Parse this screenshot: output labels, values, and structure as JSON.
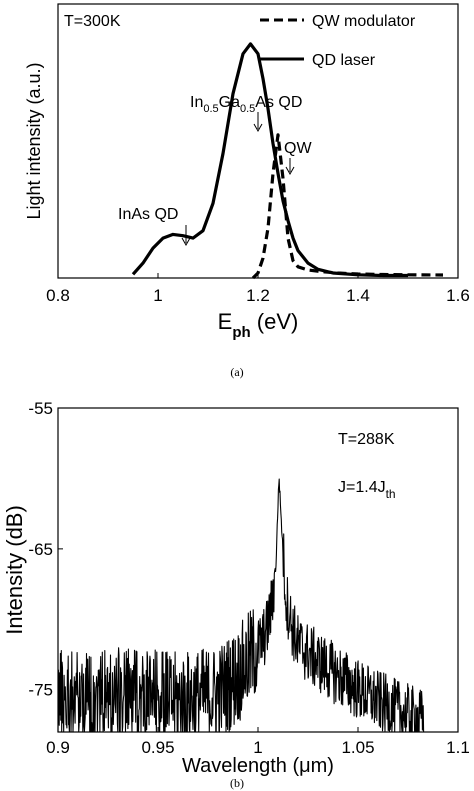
{
  "chart_data": [
    {
      "type": "line",
      "panel_label": "(a)",
      "ylabel": "Light intensity (a.u.)",
      "xlabel": {
        "main": "E",
        "sub": "ph",
        "rest": " (eV)"
      },
      "xlim": [
        0.8,
        1.6
      ],
      "ylim": [
        0,
        1.1
      ],
      "xticks": [
        0.8,
        1,
        1.2,
        1.4,
        1.6
      ],
      "xtick_labels": [
        "0.8",
        "1",
        "1.2",
        "1.4",
        "1.6"
      ],
      "grid": false,
      "temperature": "T=300K",
      "legend": {
        "placement": "top-right",
        "entries": [
          {
            "label": "QW modulator",
            "style": "dashed"
          },
          {
            "label": "QD laser",
            "style": "solid"
          }
        ]
      },
      "series": [
        {
          "name": "QW modulator",
          "style": "dashed",
          "x": [
            1.19,
            1.2,
            1.21,
            1.22,
            1.23,
            1.24,
            1.25,
            1.26,
            1.27,
            1.28,
            1.3,
            1.33,
            1.36,
            1.4,
            1.45,
            1.5,
            1.57
          ],
          "y": [
            0.0,
            0.02,
            0.08,
            0.2,
            0.42,
            0.575,
            0.4,
            0.16,
            0.07,
            0.045,
            0.032,
            0.025,
            0.02,
            0.016,
            0.014,
            0.013,
            0.012
          ]
        },
        {
          "name": "QD laser",
          "style": "solid",
          "x": [
            0.95,
            0.97,
            0.99,
            1.01,
            1.03,
            1.05,
            1.07,
            1.09,
            1.11,
            1.13,
            1.15,
            1.17,
            1.185,
            1.2,
            1.21,
            1.22,
            1.23,
            1.24,
            1.25,
            1.26,
            1.27,
            1.28,
            1.3,
            1.32,
            1.35,
            1.4,
            1.45,
            1.5
          ],
          "y": [
            0.015,
            0.06,
            0.12,
            0.16,
            0.175,
            0.17,
            0.16,
            0.19,
            0.3,
            0.5,
            0.74,
            0.9,
            0.94,
            0.9,
            0.8,
            0.68,
            0.54,
            0.42,
            0.31,
            0.23,
            0.16,
            0.11,
            0.06,
            0.035,
            0.02,
            0.013,
            0.01,
            0.01
          ]
        }
      ],
      "annotations": [
        {
          "text": "InAs QD",
          "x": 1.035,
          "y": 0.175
        },
        {
          "text_main": "In",
          "sub1": "0.5",
          "mid": "Ga",
          "sub2": "0.5",
          "rest": "As QD",
          "x": 1.185,
          "y": 0.94
        },
        {
          "text": "QW",
          "x": 1.24,
          "y": 0.575
        }
      ]
    },
    {
      "type": "line",
      "panel_label": "(b)",
      "ylabel": "Intensity (dB)",
      "xlabel": "Wavelength (μm)",
      "xlim": [
        0.9,
        1.1
      ],
      "ylim": [
        -78,
        -55
      ],
      "xticks": [
        0.9,
        0.95,
        1,
        1.05,
        1.1
      ],
      "xtick_labels": [
        "0.9",
        "0.95",
        "1",
        "1.05",
        "1.1"
      ],
      "yticks": [
        -55,
        -65,
        -75
      ],
      "ytick_labels": [
        "-55",
        "-65",
        "-75"
      ],
      "grid": false,
      "temperature": "T=288K",
      "current": {
        "main": "J=1.4J",
        "sub": "th"
      },
      "series": [
        {
          "name": "",
          "style": "solid-noisy",
          "x": [
            0.9,
            0.92,
            0.94,
            0.96,
            0.98,
            0.99,
            0.995,
            1.0,
            1.004,
            1.007,
            1.009,
            1.0105,
            1.012,
            1.014,
            1.017,
            1.02,
            1.03,
            1.04,
            1.05,
            1.06,
            1.07,
            1.083
          ],
          "y": [
            -75.5,
            -75.5,
            -75.5,
            -75.8,
            -75.3,
            -74.0,
            -73.0,
            -72.0,
            -71.0,
            -69.0,
            -66.0,
            -59.8,
            -64.0,
            -68.5,
            -70.5,
            -71.8,
            -73.0,
            -74.0,
            -75.0,
            -75.8,
            -76.5,
            -77.2
          ]
        }
      ]
    }
  ]
}
